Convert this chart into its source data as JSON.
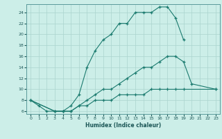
{
  "xlabel": "Humidex (Indice chaleur)",
  "bg_color": "#cceee8",
  "line_color": "#1a7a6e",
  "grid_color": "#aad4ce",
  "xlim": [
    -0.5,
    23.5
  ],
  "ylim": [
    5.5,
    25.5
  ],
  "xticks": [
    0,
    1,
    2,
    3,
    4,
    5,
    6,
    7,
    8,
    9,
    10,
    11,
    12,
    13,
    14,
    15,
    16,
    17,
    18,
    19,
    20,
    21,
    22,
    23
  ],
  "yticks": [
    6,
    8,
    10,
    12,
    14,
    16,
    18,
    20,
    22,
    24
  ],
  "line1_x": [
    0,
    1,
    2,
    3,
    4,
    5,
    6,
    7,
    8,
    9,
    10,
    11,
    12,
    13,
    14,
    15,
    16,
    17,
    18,
    19
  ],
  "line1_y": [
    8,
    7,
    6,
    6,
    6,
    7,
    9,
    14,
    17,
    19,
    20,
    22,
    22,
    24,
    24,
    24,
    25,
    25,
    23,
    19
  ],
  "line2_x": [
    0,
    3,
    4,
    5,
    6,
    7,
    8,
    9,
    10,
    11,
    12,
    13,
    14,
    15,
    16,
    17,
    18,
    19,
    20,
    23
  ],
  "line2_y": [
    8,
    6,
    6,
    6,
    7,
    8,
    9,
    10,
    10,
    11,
    12,
    13,
    14,
    14,
    15,
    16,
    16,
    15,
    11,
    10
  ],
  "line3_x": [
    0,
    3,
    4,
    5,
    6,
    7,
    8,
    9,
    10,
    11,
    12,
    13,
    14,
    15,
    16,
    17,
    18,
    19,
    23
  ],
  "line3_y": [
    8,
    6,
    6,
    6,
    7,
    7,
    8,
    8,
    8,
    9,
    9,
    9,
    9,
    10,
    10,
    10,
    10,
    10,
    10
  ]
}
